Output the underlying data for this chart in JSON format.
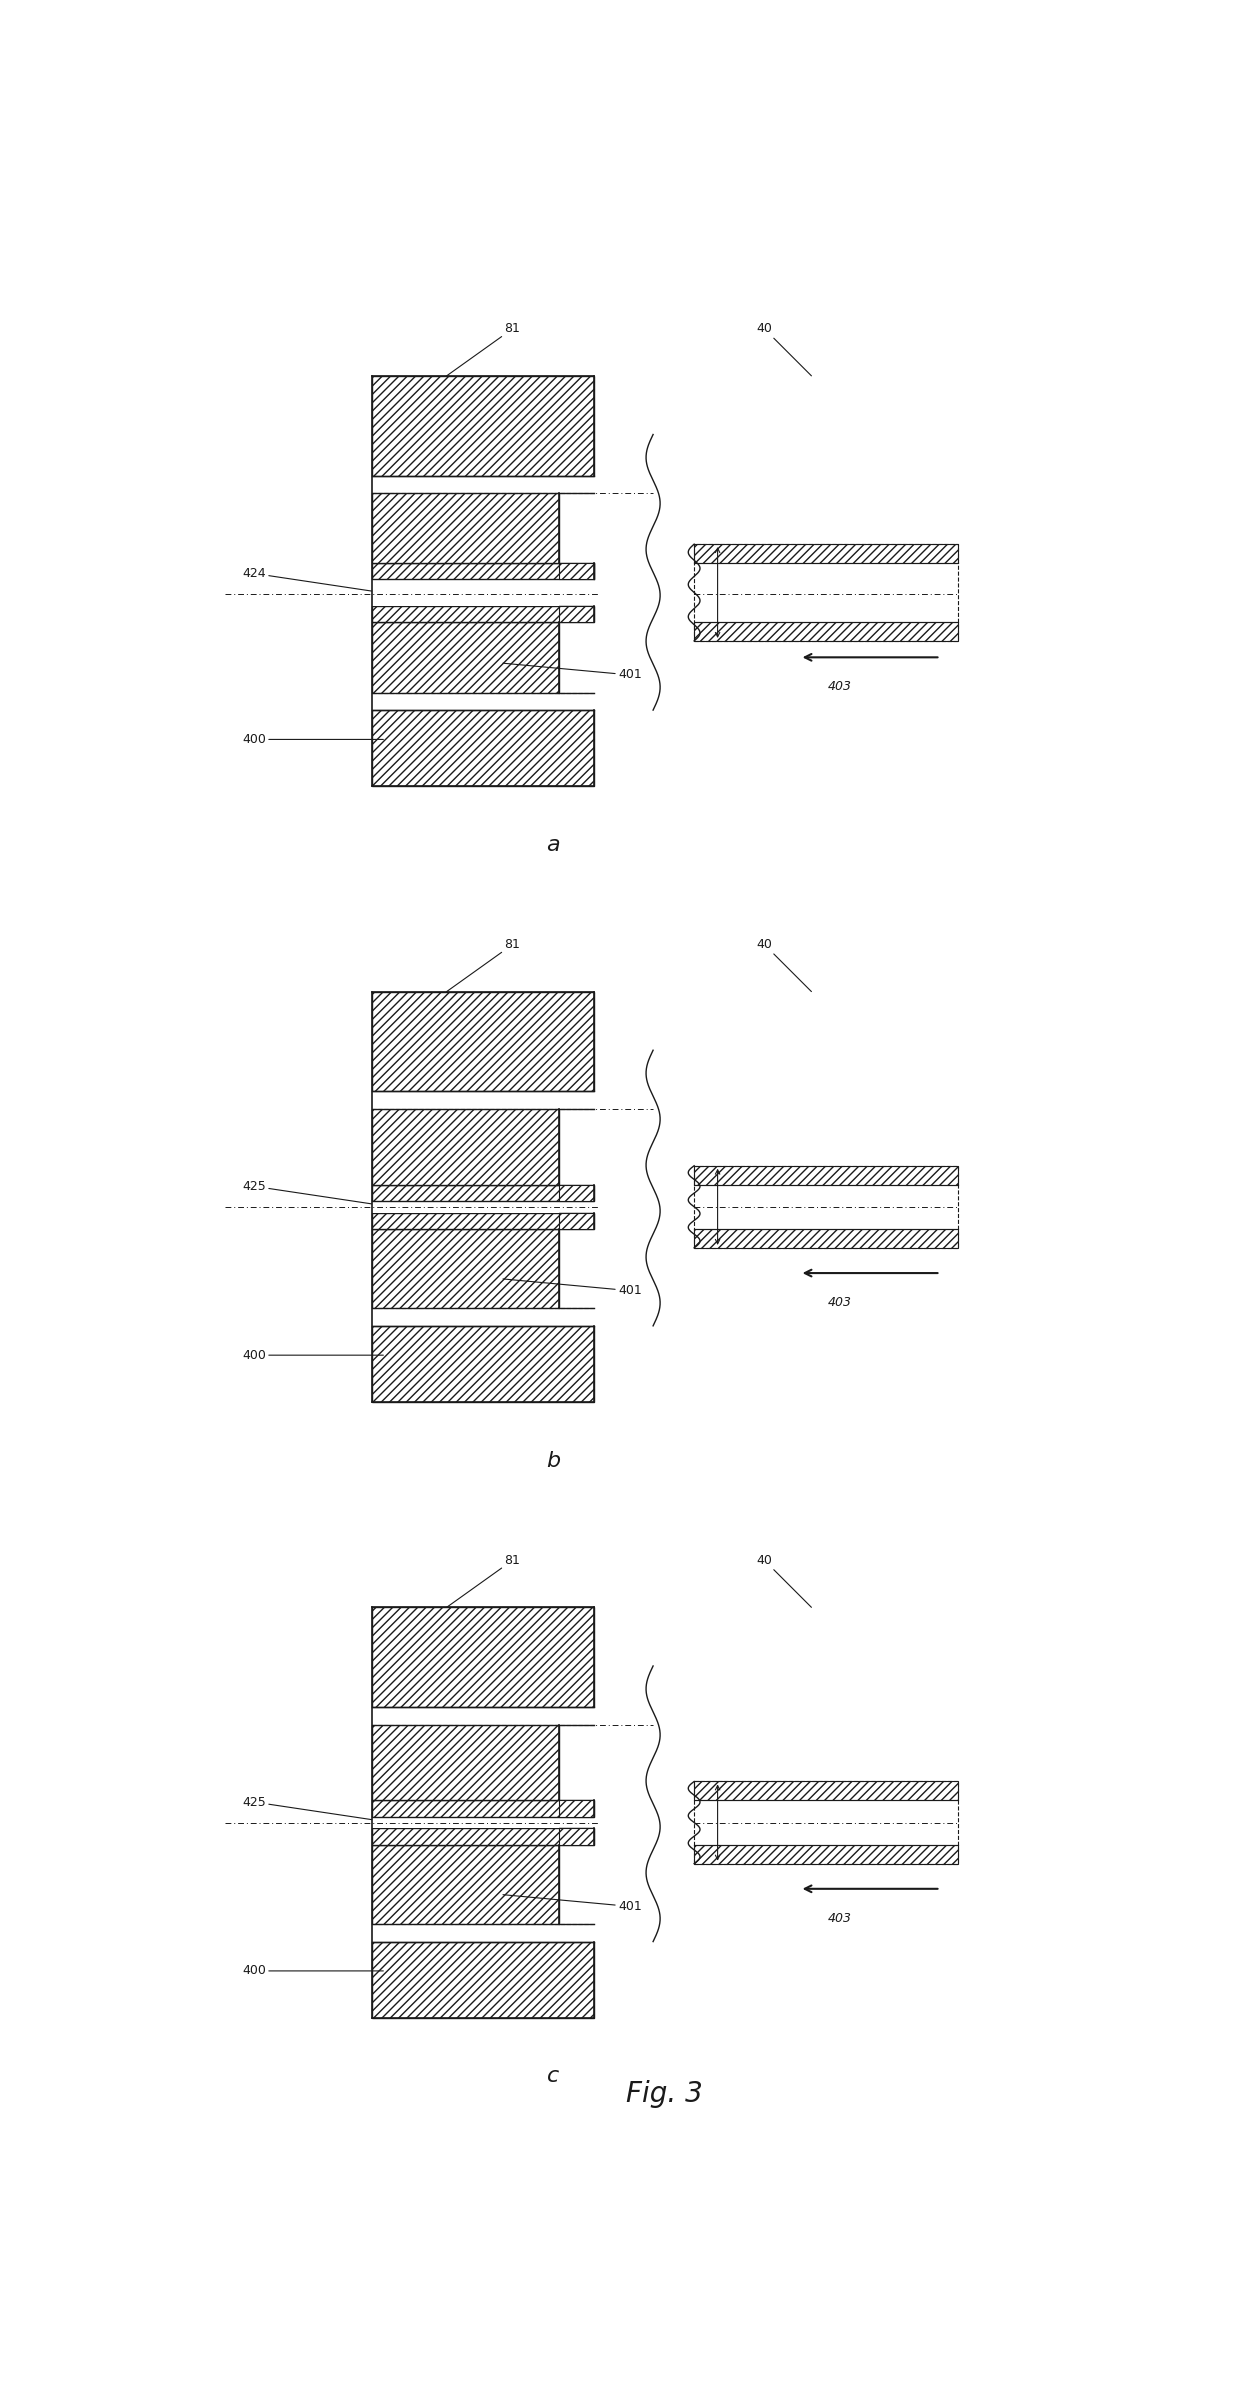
{
  "fig_title": "Fig. 3",
  "bg_color": "#ffffff",
  "lc": "#1a1a1a",
  "panels": [
    "a",
    "b",
    "c"
  ],
  "hatch": "////"
}
